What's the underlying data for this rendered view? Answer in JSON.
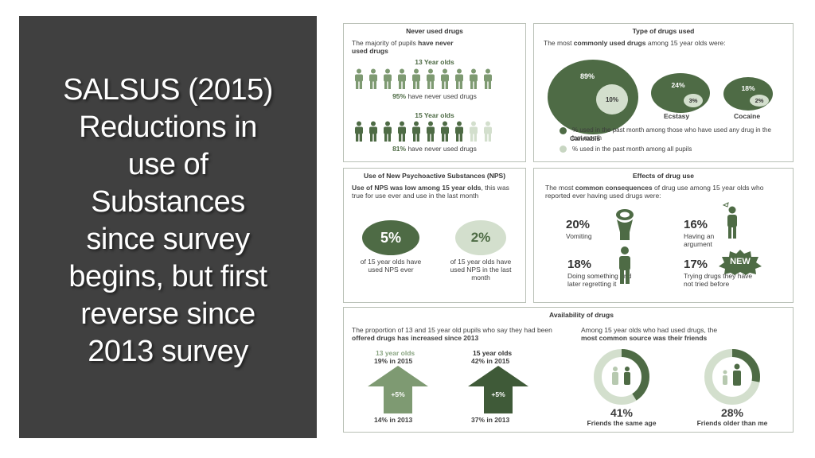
{
  "slide": {
    "title_lines": [
      "SALSUS (2015)",
      "Reductions in",
      "use of",
      "Substances",
      "since survey",
      "begins, but first",
      "reverse since",
      "2013 survey"
    ]
  },
  "never_used": {
    "title": "Never used drugs",
    "intro_a": "The majority of pupils ",
    "intro_b": "have never",
    "intro_c": "used drugs",
    "age13_label": "13 Year olds",
    "age13_stat_pct": "95%",
    "age13_stat_text": " have never used drugs",
    "age13_fraction": 0.95,
    "age15_label": "15 Year olds",
    "age15_stat_pct": "81%",
    "age15_stat_text": " have never used drugs",
    "age15_fraction": 0.81
  },
  "types": {
    "title": "Type of drugs used",
    "intro_a": "The most ",
    "intro_b": "commonly used drugs",
    "intro_c": " among 15 year olds were:",
    "drugs": [
      {
        "name": "Cannabis",
        "past_month_users": "89%",
        "all_pupils": "10%"
      },
      {
        "name": "Ecstasy",
        "past_month_users": "24%",
        "all_pupils": "3%"
      },
      {
        "name": "Cocaine",
        "past_month_users": "18%",
        "all_pupils": "2%"
      }
    ],
    "legend_dark": "% used in the past month among those who have used any drug in the last month",
    "legend_light": "% used in the past month among all pupils"
  },
  "nps": {
    "title": "Use of New Psychoactive Substances (NPS)",
    "intro_a": "Use of NPS was low among 15 year olds",
    "intro_b": ", this was true for use ever and use in the last month",
    "ever_value": "5%",
    "ever_caption": "of 15 year olds have used NPS ever",
    "month_value": "2%",
    "month_caption": "of 15 year olds have used NPS in the last month"
  },
  "effects": {
    "title": "Effects of drug use",
    "intro_a": "The most ",
    "intro_b": "common consequences",
    "intro_c": " of drug use among 15 year olds who reported ever having used drugs were:",
    "items": [
      {
        "value": "20%",
        "label": "Vomiting"
      },
      {
        "value": "16%",
        "label": "Having an argument"
      },
      {
        "value": "18%",
        "label": "Doing something and later regretting it"
      },
      {
        "value": "17%",
        "label": "Trying drugs they have not tried before"
      }
    ],
    "new_badge": "NEW"
  },
  "availability": {
    "title": "Availability of drugs",
    "offered_a": "The proportion of 13 and 15 year old pupils who say they had been ",
    "offered_b": "offered drugs has increased since 2013",
    "arrows": [
      {
        "group": "13 year olds",
        "now": "19% in 2015",
        "change": "+5%",
        "before": "14% in 2013"
      },
      {
        "group": "15 year olds",
        "now": "42% in 2015",
        "change": "+5%",
        "before": "37% in 2013"
      }
    ],
    "source_a": "Among 15 year olds who had used drugs, the",
    "source_b": "most common source was their friends",
    "sources": [
      {
        "value": "41%",
        "label": "Friends the same age",
        "fraction": 0.41
      },
      {
        "value": "28%",
        "label": "Friends older than me",
        "fraction": 0.28
      }
    ]
  },
  "colors": {
    "dark_green": "#4e6b45",
    "light_green": "#b7c9b0",
    "panel_dark": "#404040"
  }
}
